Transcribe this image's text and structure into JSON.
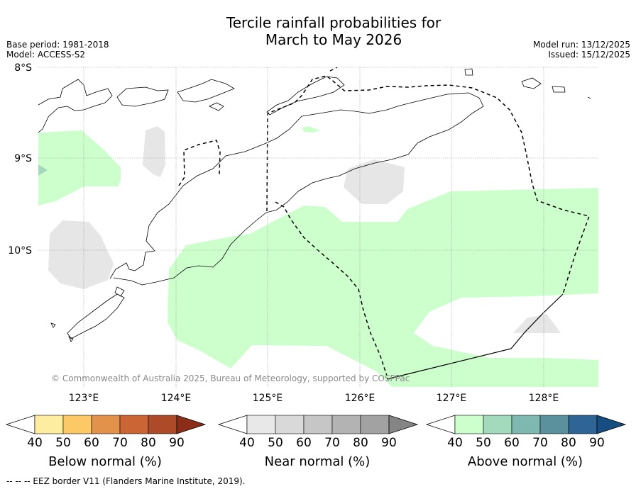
{
  "title_line1": "Tercile rainfall probabilities for",
  "title_line2": "March to May 2026",
  "meta_left": {
    "base_period": "Base period: 1981-2018",
    "model": "Model: ACCESS-S2"
  },
  "meta_right": {
    "model_run": "Model run: 13/12/2025",
    "issued": "Issued: 15/12/2025"
  },
  "lat_labels": [
    "8°S",
    "9°S",
    "10°S"
  ],
  "lon_labels": [
    "123°E",
    "124°E",
    "125°E",
    "126°E",
    "127°E",
    "128°E"
  ],
  "copyright": "© Commonwealth of Australia 2025, Bureau of Meteorology, supported by COSPPac",
  "colorbars": [
    {
      "title": "Below normal (%)",
      "ticks": [
        "40",
        "50",
        "60",
        "70",
        "80",
        "90"
      ],
      "colors": [
        "#ffffff",
        "#fdeda0",
        "#fdc966",
        "#e2924a",
        "#cc6535",
        "#ad4a28",
        "#8c2d19"
      ]
    },
    {
      "title": "Near normal (%)",
      "ticks": [
        "40",
        "50",
        "60",
        "70",
        "80",
        "90"
      ],
      "colors": [
        "#ffffff",
        "#e8e8e8",
        "#d9d9d9",
        "#c6c6c6",
        "#b3b3b3",
        "#a2a2a2",
        "#858585"
      ]
    },
    {
      "title": "Above normal (%)",
      "ticks": [
        "40",
        "50",
        "60",
        "70",
        "80",
        "90"
      ],
      "colors": [
        "#ffffff",
        "#ccffcc",
        "#a3d9bd",
        "#7fb8b1",
        "#5a919d",
        "#2e6496",
        "#174e81"
      ]
    }
  ],
  "footnote": "-- -- -- EEZ border V11 (Flanders Marine Institute, 2019).",
  "colors": {
    "above_normal_40": "#ccffcc",
    "above_normal_50": "#a3d9bd",
    "near_normal_40": "#e8e8e8"
  }
}
